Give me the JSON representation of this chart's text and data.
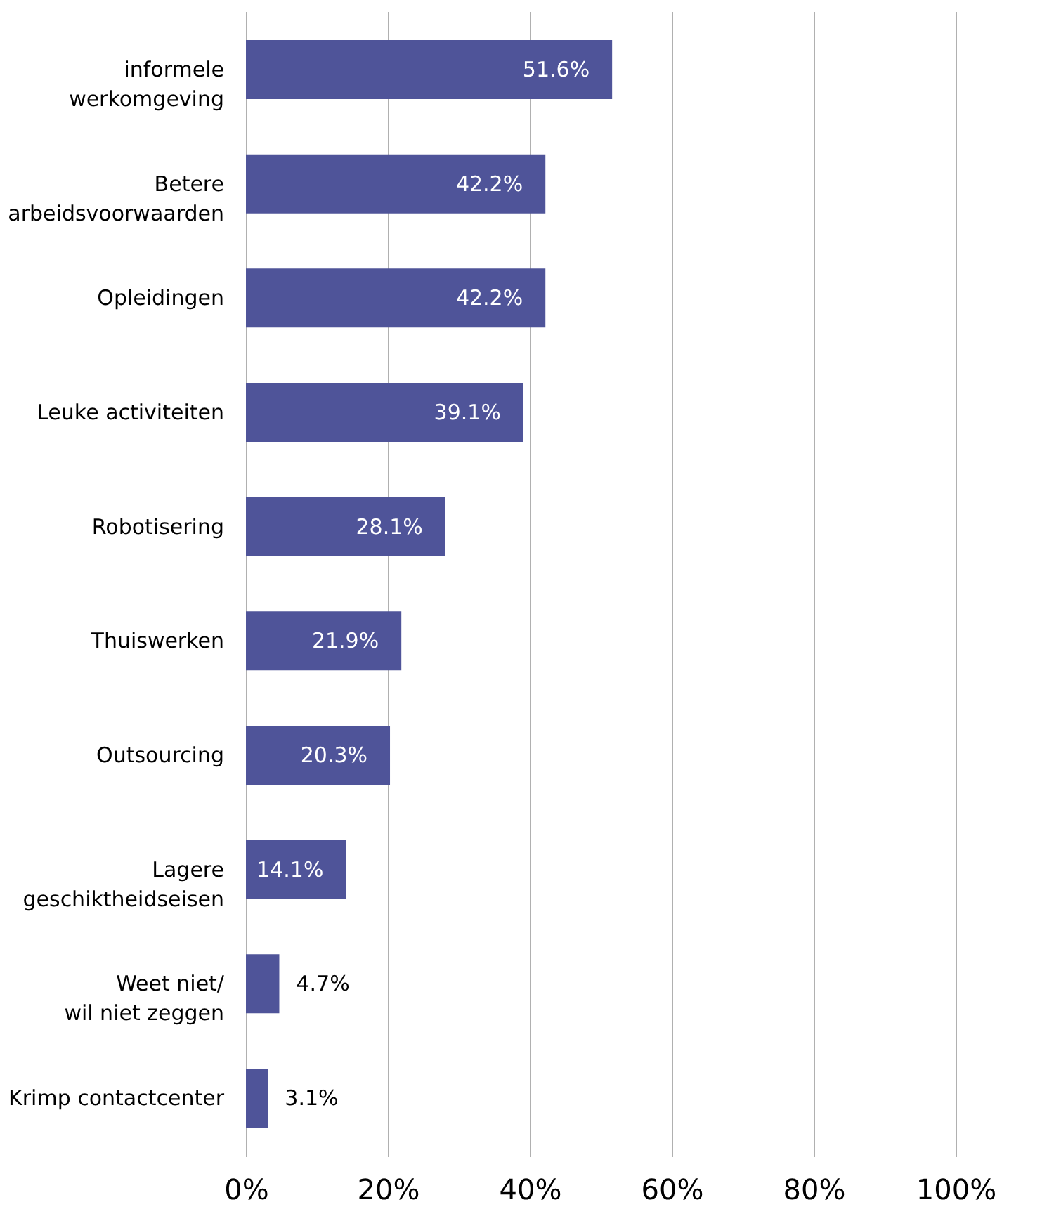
{
  "chart_data": {
    "type": "bar",
    "orientation": "horizontal",
    "categories": [
      "informele\nwerkomgeving",
      "Betere\narbeidsvoorwaarden",
      "Opleidingen",
      "Leuke activiteiten",
      "Robotisering",
      "Thuiswerken",
      "Outsourcing",
      "Lagere\ngeschiktheidseisen",
      "Weet niet/\nwil niet zeggen",
      "Krimp contactcenter"
    ],
    "values": [
      51.6,
      42.2,
      42.2,
      39.1,
      28.1,
      21.9,
      20.3,
      14.1,
      4.7,
      3.1
    ],
    "value_labels": [
      "51.6%",
      "42.2%",
      "42.2%",
      "39.1%",
      "28.1%",
      "21.9%",
      "20.3%",
      "14.1%",
      "4.7%",
      "3.1%"
    ],
    "color": "#4f5499",
    "xlim": [
      0,
      100
    ],
    "xticks": [
      {
        "value": 0,
        "label": "0%"
      },
      {
        "value": 20,
        "label": "20%"
      },
      {
        "value": 40,
        "label": "40%"
      },
      {
        "value": 60,
        "label": "60%"
      },
      {
        "value": 80,
        "label": "80%"
      },
      {
        "value": 100,
        "label": "100%"
      }
    ],
    "grid": "x"
  }
}
